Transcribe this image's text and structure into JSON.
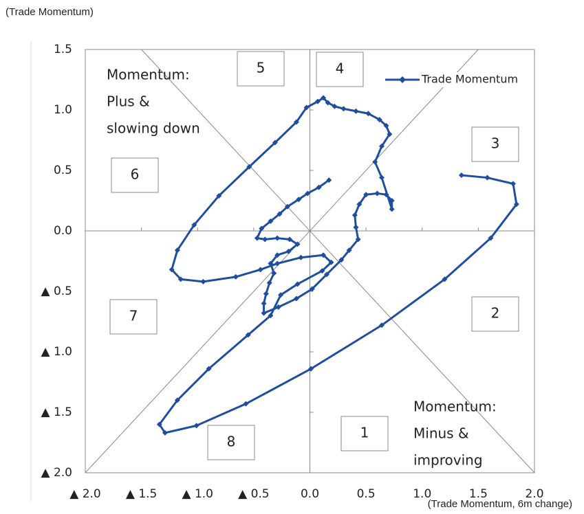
{
  "chart_data": {
    "type": "line",
    "y_axis_label": "(Trade Momentum)",
    "x_axis_label": "(Trade Momentum, 6m change)",
    "x": [
      0.17,
      0.08,
      -0.02,
      -0.1,
      -0.2,
      -0.27,
      -0.35,
      -0.43,
      -0.47,
      -0.4,
      -0.29,
      -0.18,
      -0.11,
      -0.19,
      -0.29,
      -0.35,
      -0.32,
      -0.36,
      -0.39,
      -0.41,
      -0.41,
      -0.28,
      -0.12,
      0.02,
      0.15,
      0.28,
      0.35,
      0.43,
      0.41,
      0.4,
      0.44,
      0.5,
      0.6,
      0.68,
      0.73,
      0.73,
      0.64,
      0.58,
      0.64,
      0.71,
      0.68,
      0.62,
      0.52,
      0.41,
      0.3,
      0.22,
      0.16,
      0.12,
      0.07,
      -0.03,
      -0.12,
      -0.31,
      -0.54,
      -0.81,
      -1.03,
      -1.18,
      -1.23,
      -1.15,
      -0.95,
      -0.66,
      -0.44,
      -0.29,
      -0.08,
      0.12,
      0.19,
      0.11,
      -0.11,
      -0.26,
      -0.35,
      -0.55,
      -0.9,
      -1.18,
      -1.34,
      -1.29,
      -1.01,
      -0.57,
      0.01,
      0.64,
      1.2,
      1.61,
      1.84,
      1.81,
      1.58,
      1.35
    ],
    "series": [
      {
        "name": "Trade Momentum",
        "color": "#1f4e9c",
        "values": [
          0.42,
          0.36,
          0.31,
          0.26,
          0.2,
          0.14,
          0.08,
          0.02,
          -0.06,
          -0.07,
          -0.06,
          -0.07,
          -0.11,
          -0.17,
          -0.2,
          -0.27,
          -0.35,
          -0.43,
          -0.52,
          -0.6,
          -0.68,
          -0.63,
          -0.56,
          -0.48,
          -0.36,
          -0.24,
          -0.16,
          -0.07,
          0.03,
          0.13,
          0.22,
          0.3,
          0.31,
          0.3,
          0.25,
          0.18,
          0.44,
          0.57,
          0.7,
          0.8,
          0.87,
          0.92,
          0.97,
          0.99,
          1.01,
          1.03,
          1.06,
          1.1,
          1.07,
          1.02,
          0.9,
          0.73,
          0.53,
          0.29,
          0.05,
          -0.16,
          -0.32,
          -0.4,
          -0.42,
          -0.38,
          -0.32,
          -0.27,
          -0.22,
          -0.2,
          -0.26,
          -0.33,
          -0.44,
          -0.53,
          -0.7,
          -0.86,
          -1.14,
          -1.4,
          -1.6,
          -1.67,
          -1.61,
          -1.43,
          -1.14,
          -0.78,
          -0.4,
          -0.06,
          0.22,
          0.39,
          0.44,
          0.46
        ]
      }
    ],
    "xlim": [
      -2,
      2
    ],
    "ylim": [
      -2,
      1.5
    ],
    "xticks": [
      {
        "value": -2,
        "label": "▲ 2.0"
      },
      {
        "value": -1.5,
        "label": "▲ 1.5"
      },
      {
        "value": -1,
        "label": "▲ 1.0"
      },
      {
        "value": -0.5,
        "label": "▲ 0.5"
      },
      {
        "value": 0,
        "label": "0.0"
      },
      0.5,
      {
        "value": 1,
        "label": "1.0"
      },
      1.5,
      {
        "value": 2,
        "label": "2.0"
      }
    ],
    "yticks": [
      {
        "value": -2,
        "label": "▲ 2.0"
      },
      {
        "value": -1.5,
        "label": "▲ 1.5"
      },
      {
        "value": -1,
        "label": "▲ 1.0"
      },
      {
        "value": -0.5,
        "label": "▲ 0.5"
      },
      {
        "value": 0,
        "label": "0.0"
      },
      0.5,
      {
        "value": 1,
        "label": "1.0"
      },
      1.5
    ],
    "legend": "upper right",
    "box_labels": [
      "1",
      "2",
      "3",
      "4",
      "5",
      "6",
      "7",
      "8"
    ],
    "notes": [
      [
        "Momentum:",
        "Plus &",
        "slowing down"
      ],
      [
        "Momentum:",
        "Minus &",
        "improving"
      ]
    ]
  }
}
